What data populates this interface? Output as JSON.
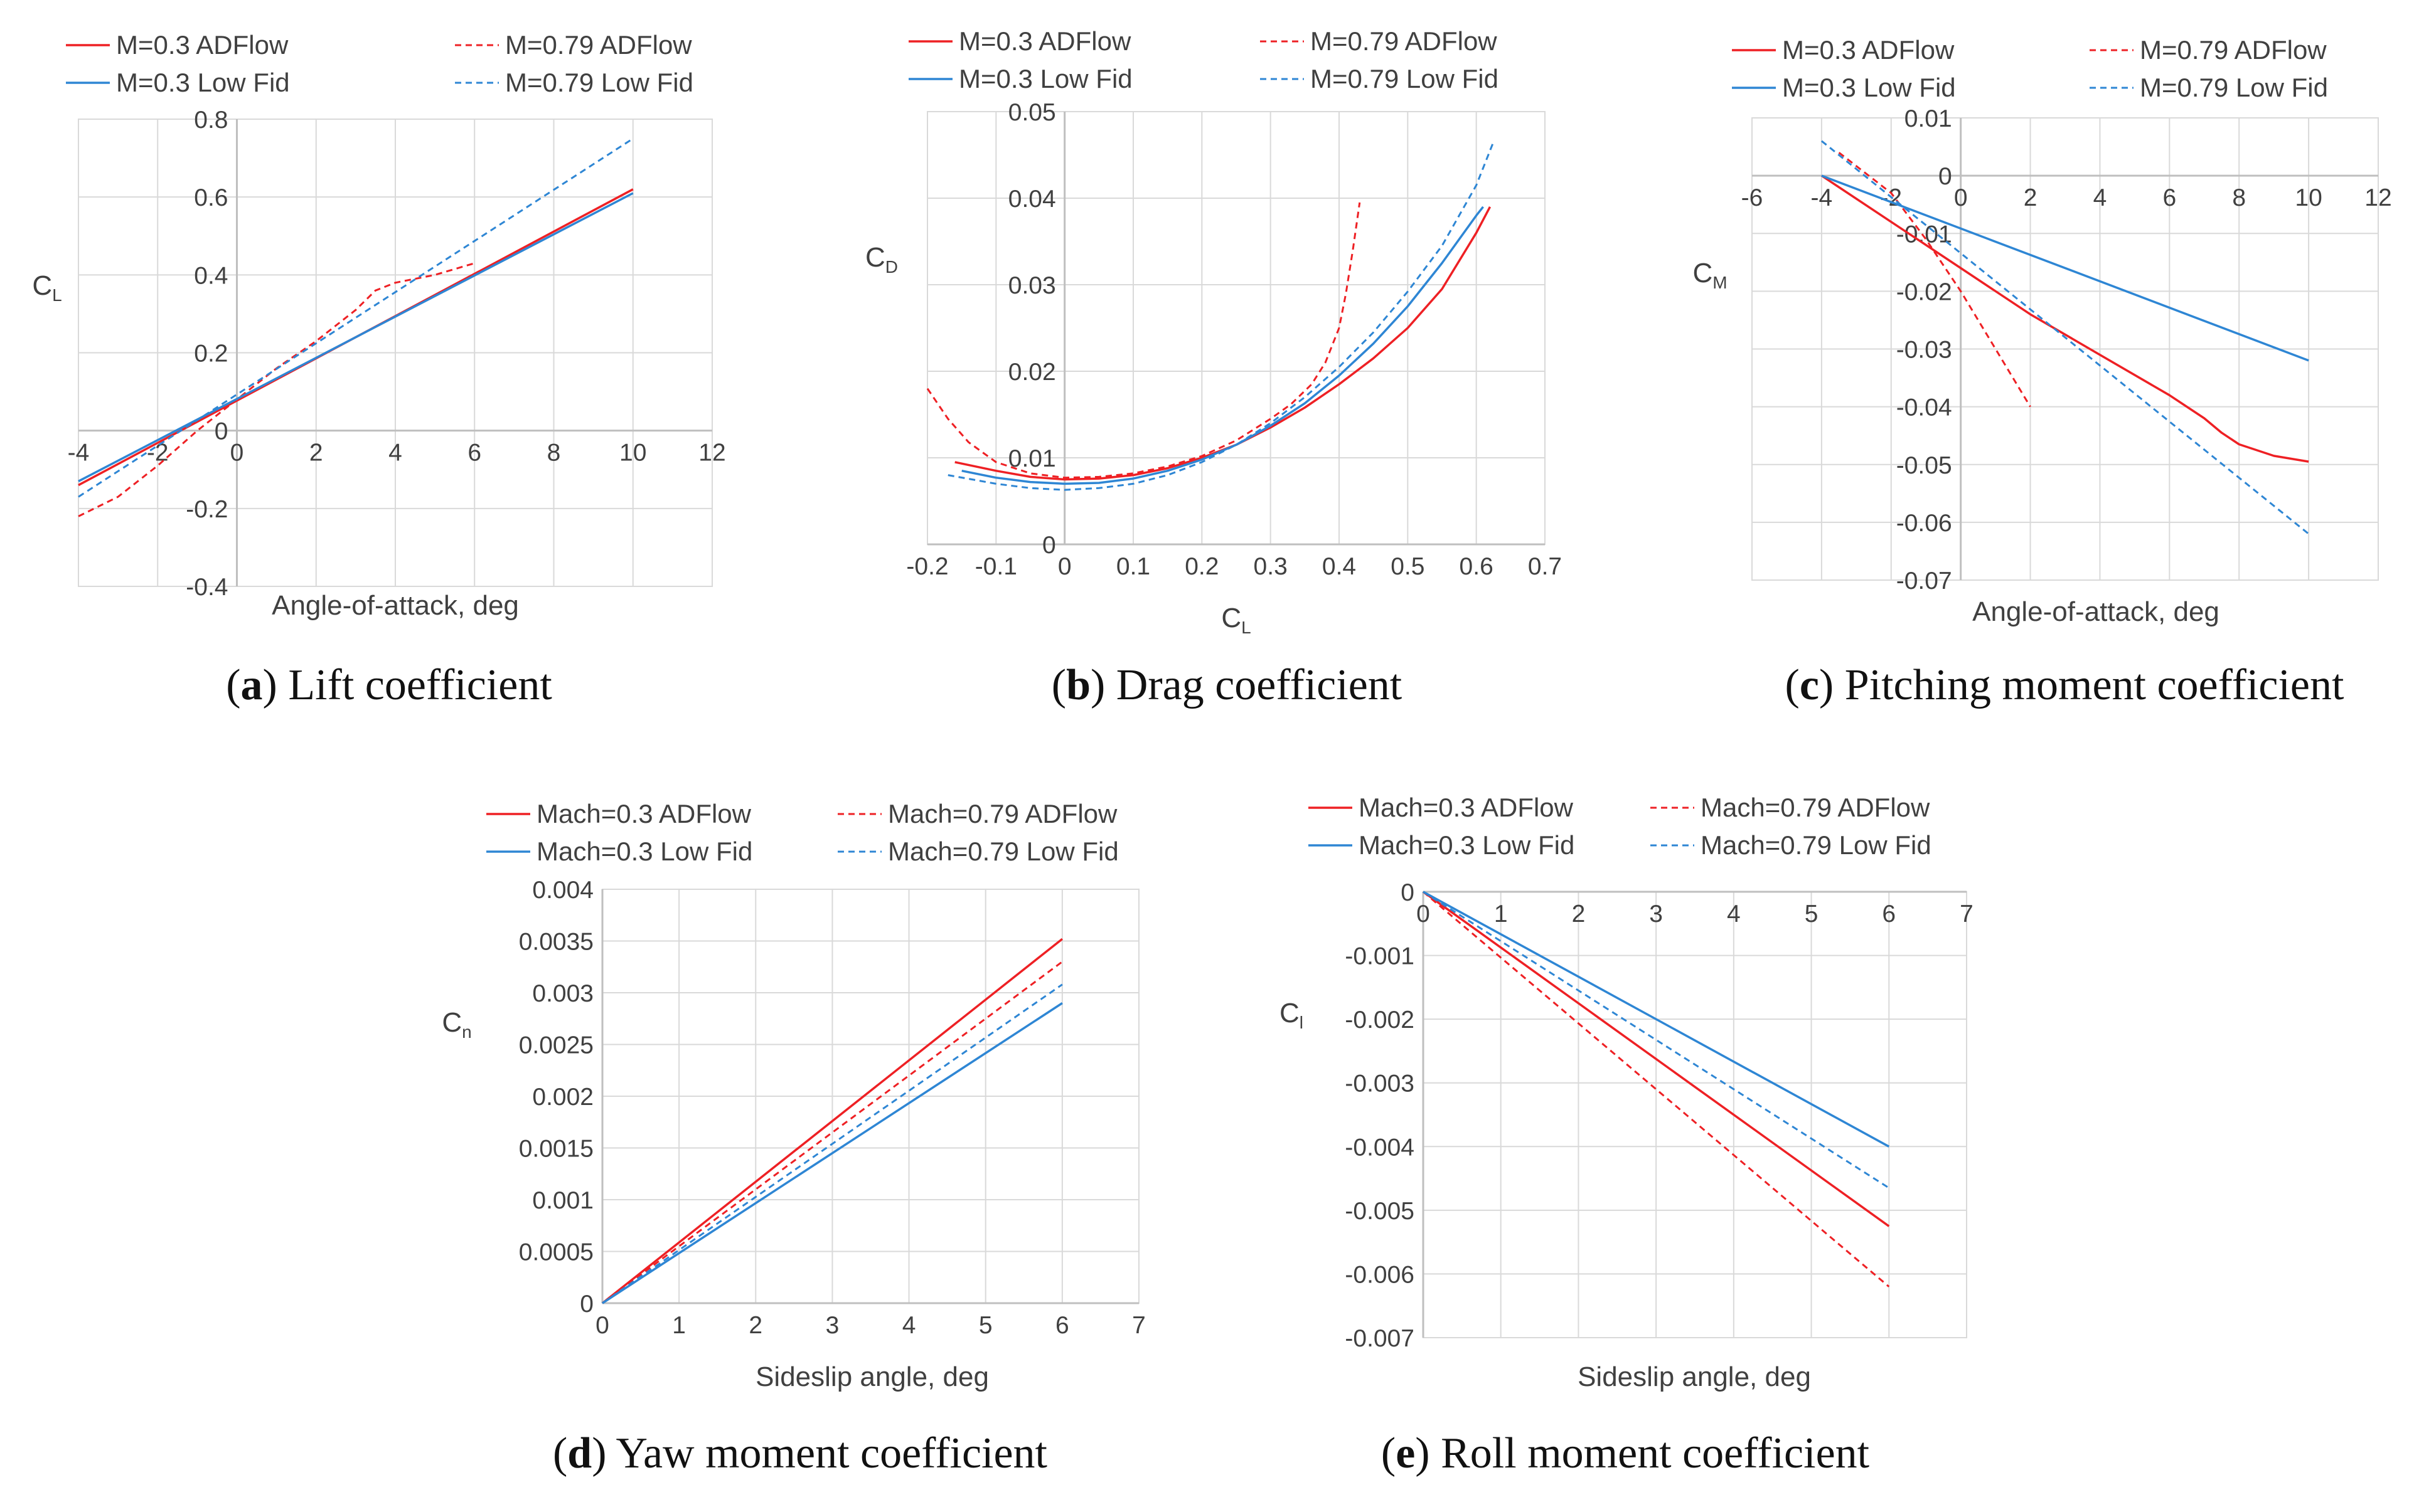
{
  "colors": {
    "adflow": "#ee2024",
    "lowfid": "#2e86d4",
    "grid": "#d9d9d9",
    "axis": "#bfbfbf",
    "text": "#404040"
  },
  "chart_data": [
    {
      "id": "a",
      "type": "line",
      "caption": {
        "letter": "a",
        "text": "Lift coefficient"
      },
      "title": "",
      "xlabel": "Angle-of-attack, deg",
      "ylabel": {
        "main": "C",
        "sub": "L"
      },
      "xlim": [
        -4,
        12
      ],
      "ylim": [
        -0.4,
        0.8
      ],
      "xticks": [
        -4,
        -2,
        0,
        2,
        4,
        6,
        8,
        10,
        12
      ],
      "yticks": [
        -0.4,
        -0.2,
        0,
        0.2,
        0.4,
        0.6,
        0.8
      ],
      "xtick_labels": [
        "-4",
        "-2",
        "0",
        "2",
        "4",
        "6",
        "8",
        "10",
        "12"
      ],
      "ytick_labels": [
        "-0.4",
        "-0.2",
        "0",
        "0.2",
        "0.4",
        "0.6",
        "0.8"
      ],
      "x_axis_at": 0,
      "y_axis_at": 0,
      "legend": "top",
      "grid": true,
      "series": [
        {
          "name": "M=0.3 ADFlow",
          "color": "#ee2024",
          "dash": false,
          "x": [
            -4,
            10
          ],
          "y": [
            -0.14,
            0.62
          ]
        },
        {
          "name": "M=0.79 ADFlow",
          "color": "#ee2024",
          "dash": true,
          "x": [
            -4,
            -3,
            -2,
            -1,
            0,
            1,
            2,
            3,
            3.5,
            4,
            5,
            6
          ],
          "y": [
            -0.22,
            -0.17,
            -0.09,
            0.0,
            0.08,
            0.16,
            0.23,
            0.31,
            0.36,
            0.38,
            0.4,
            0.43
          ]
        },
        {
          "name": "M=0.3 Low Fid",
          "color": "#2e86d4",
          "dash": false,
          "x": [
            -4,
            10
          ],
          "y": [
            -0.13,
            0.61
          ]
        },
        {
          "name": "M=0.79 Low Fid",
          "color": "#2e86d4",
          "dash": true,
          "x": [
            -4,
            10
          ],
          "y": [
            -0.17,
            0.75
          ]
        }
      ]
    },
    {
      "id": "b",
      "type": "line",
      "caption": {
        "letter": "b",
        "text": "Drag coefficient"
      },
      "title": "",
      "xlabel": {
        "main": "C",
        "sub": "L"
      },
      "ylabel": {
        "main": "C",
        "sub": "D"
      },
      "xlim": [
        -0.2,
        0.7
      ],
      "ylim": [
        0,
        0.05
      ],
      "xticks": [
        -0.2,
        -0.1,
        0,
        0.1,
        0.2,
        0.3,
        0.4,
        0.5,
        0.6,
        0.7
      ],
      "yticks": [
        0,
        0.01,
        0.02,
        0.03,
        0.04,
        0.05
      ],
      "xtick_labels": [
        "-0.2",
        "-0.1",
        "0",
        "0.1",
        "0.2",
        "0.3",
        "0.4",
        "0.5",
        "0.6",
        "0.7"
      ],
      "ytick_labels": [
        "0",
        "0.01",
        "0.02",
        "0.03",
        "0.04",
        "0.05"
      ],
      "x_axis_at": 0,
      "y_axis_at": 0,
      "legend": "top",
      "grid": true,
      "series": [
        {
          "name": "M=0.3 ADFlow",
          "color": "#ee2024",
          "dash": false,
          "x": [
            -0.16,
            -0.1,
            -0.05,
            0,
            0.05,
            0.1,
            0.15,
            0.2,
            0.25,
            0.3,
            0.35,
            0.4,
            0.45,
            0.5,
            0.55,
            0.6,
            0.62
          ],
          "y": [
            0.0095,
            0.0085,
            0.0078,
            0.0075,
            0.0076,
            0.008,
            0.0088,
            0.01,
            0.0115,
            0.0135,
            0.0158,
            0.0185,
            0.0215,
            0.025,
            0.0295,
            0.036,
            0.039
          ]
        },
        {
          "name": "M=0.79 ADFlow",
          "color": "#ee2024",
          "dash": true,
          "x": [
            -0.2,
            -0.17,
            -0.14,
            -0.1,
            -0.05,
            0,
            0.05,
            0.1,
            0.15,
            0.2,
            0.25,
            0.3,
            0.33,
            0.36,
            0.38,
            0.4,
            0.41,
            0.42,
            0.43
          ],
          "y": [
            0.018,
            0.0145,
            0.0118,
            0.0095,
            0.0082,
            0.0077,
            0.0078,
            0.0082,
            0.009,
            0.0102,
            0.012,
            0.0145,
            0.0162,
            0.0185,
            0.021,
            0.025,
            0.029,
            0.034,
            0.0395
          ]
        },
        {
          "name": "M=0.3 Low Fid",
          "color": "#2e86d4",
          "dash": false,
          "x": [
            -0.15,
            -0.1,
            -0.05,
            0,
            0.05,
            0.1,
            0.15,
            0.2,
            0.25,
            0.3,
            0.35,
            0.4,
            0.45,
            0.5,
            0.55,
            0.6,
            0.61
          ],
          "y": [
            0.0085,
            0.0077,
            0.0072,
            0.007,
            0.0071,
            0.0076,
            0.0085,
            0.0098,
            0.0115,
            0.0137,
            0.0163,
            0.0195,
            0.0232,
            0.0275,
            0.0325,
            0.038,
            0.039
          ]
        },
        {
          "name": "M=0.79 Low Fid",
          "color": "#2e86d4",
          "dash": true,
          "x": [
            -0.17,
            -0.1,
            -0.05,
            0,
            0.05,
            0.1,
            0.15,
            0.2,
            0.25,
            0.3,
            0.35,
            0.4,
            0.45,
            0.5,
            0.55,
            0.6,
            0.625
          ],
          "y": [
            0.008,
            0.007,
            0.0065,
            0.0063,
            0.0065,
            0.007,
            0.008,
            0.0095,
            0.0115,
            0.014,
            0.017,
            0.0205,
            0.0245,
            0.0292,
            0.0345,
            0.0415,
            0.0465
          ]
        }
      ]
    },
    {
      "id": "c",
      "type": "line",
      "caption": {
        "letter": "c",
        "text": "Pitching moment coefficient"
      },
      "title": "",
      "xlabel": "Angle-of-attack, deg",
      "ylabel": {
        "main": "C",
        "sub": "M"
      },
      "xlim": [
        -6,
        12
      ],
      "ylim": [
        -0.07,
        0.01
      ],
      "xticks": [
        -6,
        -4,
        -2,
        0,
        2,
        4,
        6,
        8,
        10,
        12
      ],
      "yticks": [
        -0.07,
        -0.06,
        -0.05,
        -0.04,
        -0.03,
        -0.02,
        -0.01,
        0,
        0.01
      ],
      "xtick_labels": [
        "-6",
        "-4",
        "-2",
        "0",
        "2",
        "4",
        "6",
        "8",
        "10",
        "12"
      ],
      "ytick_labels": [
        "-0.07",
        "-0.06",
        "-0.05",
        "-0.04",
        "-0.03",
        "-0.02",
        "-0.01",
        "0",
        "0.01"
      ],
      "x_axis_at": 0,
      "y_axis_at": 0,
      "legend": "top",
      "grid": true,
      "series": [
        {
          "name": "M=0.3 ADFlow",
          "color": "#ee2024",
          "dash": false,
          "x": [
            -4,
            -2,
            0,
            2,
            4,
            6,
            7,
            7.5,
            8,
            9,
            10
          ],
          "y": [
            0.0,
            -0.008,
            -0.016,
            -0.024,
            -0.031,
            -0.038,
            -0.042,
            -0.0445,
            -0.0465,
            -0.0485,
            -0.0495
          ]
        },
        {
          "name": "M=0.79 ADFlow",
          "color": "#ee2024",
          "dash": true,
          "x": [
            -3.5,
            -2,
            -1,
            0,
            2
          ],
          "y": [
            0.004,
            -0.003,
            -0.011,
            -0.02,
            -0.04
          ]
        },
        {
          "name": "M=0.3 Low Fid",
          "color": "#2e86d4",
          "dash": false,
          "x": [
            -4,
            10
          ],
          "y": [
            0.0,
            -0.032
          ]
        },
        {
          "name": "M=0.79 Low Fid",
          "color": "#2e86d4",
          "dash": true,
          "x": [
            -4,
            10
          ],
          "y": [
            0.006,
            -0.062
          ]
        }
      ]
    },
    {
      "id": "d",
      "type": "line",
      "caption": {
        "letter": "d",
        "text": "Yaw moment coefficient"
      },
      "title": "",
      "xlabel": "Sideslip angle, deg",
      "ylabel": {
        "main": "C",
        "sub": "n"
      },
      "xlim": [
        0,
        7
      ],
      "ylim": [
        0,
        0.004
      ],
      "xticks": [
        0,
        1,
        2,
        3,
        4,
        5,
        6,
        7
      ],
      "yticks": [
        0,
        0.0005,
        0.001,
        0.0015,
        0.002,
        0.0025,
        0.003,
        0.0035,
        0.004
      ],
      "xtick_labels": [
        "0",
        "1",
        "2",
        "3",
        "4",
        "5",
        "6",
        "7"
      ],
      "ytick_labels": [
        "0",
        "0.0005",
        "0.001",
        "0.0015",
        "0.002",
        "0.0025",
        "0.003",
        "0.0035",
        "0.004"
      ],
      "x_axis_at": 0,
      "y_axis_at": 0,
      "legend": "top",
      "grid": true,
      "series": [
        {
          "name": "Mach=0.3 ADFlow",
          "color": "#ee2024",
          "dash": false,
          "x": [
            0,
            6
          ],
          "y": [
            0,
            0.00352
          ]
        },
        {
          "name": "Mach=0.79 ADFlow",
          "color": "#ee2024",
          "dash": true,
          "x": [
            0,
            6
          ],
          "y": [
            0,
            0.0033
          ]
        },
        {
          "name": "Mach=0.3 Low Fid",
          "color": "#2e86d4",
          "dash": false,
          "x": [
            0,
            6
          ],
          "y": [
            0,
            0.0029
          ]
        },
        {
          "name": "Mach=0.79 Low Fid",
          "color": "#2e86d4",
          "dash": true,
          "x": [
            0,
            6
          ],
          "y": [
            0,
            0.00308
          ]
        }
      ]
    },
    {
      "id": "e",
      "type": "line",
      "caption": {
        "letter": "e",
        "text": "Roll moment coefficient"
      },
      "title": "",
      "xlabel": "Sideslip angle, deg",
      "ylabel": {
        "main": "C",
        "sub": "l"
      },
      "xlim": [
        0,
        7
      ],
      "ylim": [
        -0.007,
        0
      ],
      "xticks": [
        0,
        1,
        2,
        3,
        4,
        5,
        6,
        7
      ],
      "yticks": [
        -0.007,
        -0.006,
        -0.005,
        -0.004,
        -0.003,
        -0.002,
        -0.001,
        0
      ],
      "xtick_labels": [
        "0",
        "1",
        "2",
        "3",
        "4",
        "5",
        "6",
        "7"
      ],
      "ytick_labels": [
        "-0.007",
        "-0.006",
        "-0.005",
        "-0.004",
        "-0.003",
        "-0.002",
        "-0.001",
        "0"
      ],
      "x_axis_at": 0,
      "y_axis_at": 0,
      "legend": "top",
      "grid": true,
      "series": [
        {
          "name": "Mach=0.3 ADFlow",
          "color": "#ee2024",
          "dash": false,
          "x": [
            0,
            6
          ],
          "y": [
            0,
            -0.00525
          ]
        },
        {
          "name": "Mach=0.79 ADFlow",
          "color": "#ee2024",
          "dash": true,
          "x": [
            0,
            6
          ],
          "y": [
            0,
            -0.0062
          ]
        },
        {
          "name": "Mach=0.3 Low Fid",
          "color": "#2e86d4",
          "dash": false,
          "x": [
            0,
            6
          ],
          "y": [
            0,
            -0.004
          ]
        },
        {
          "name": "Mach=0.79 Low Fid",
          "color": "#2e86d4",
          "dash": true,
          "x": [
            0,
            6
          ],
          "y": [
            0,
            -0.00465
          ]
        }
      ]
    }
  ]
}
